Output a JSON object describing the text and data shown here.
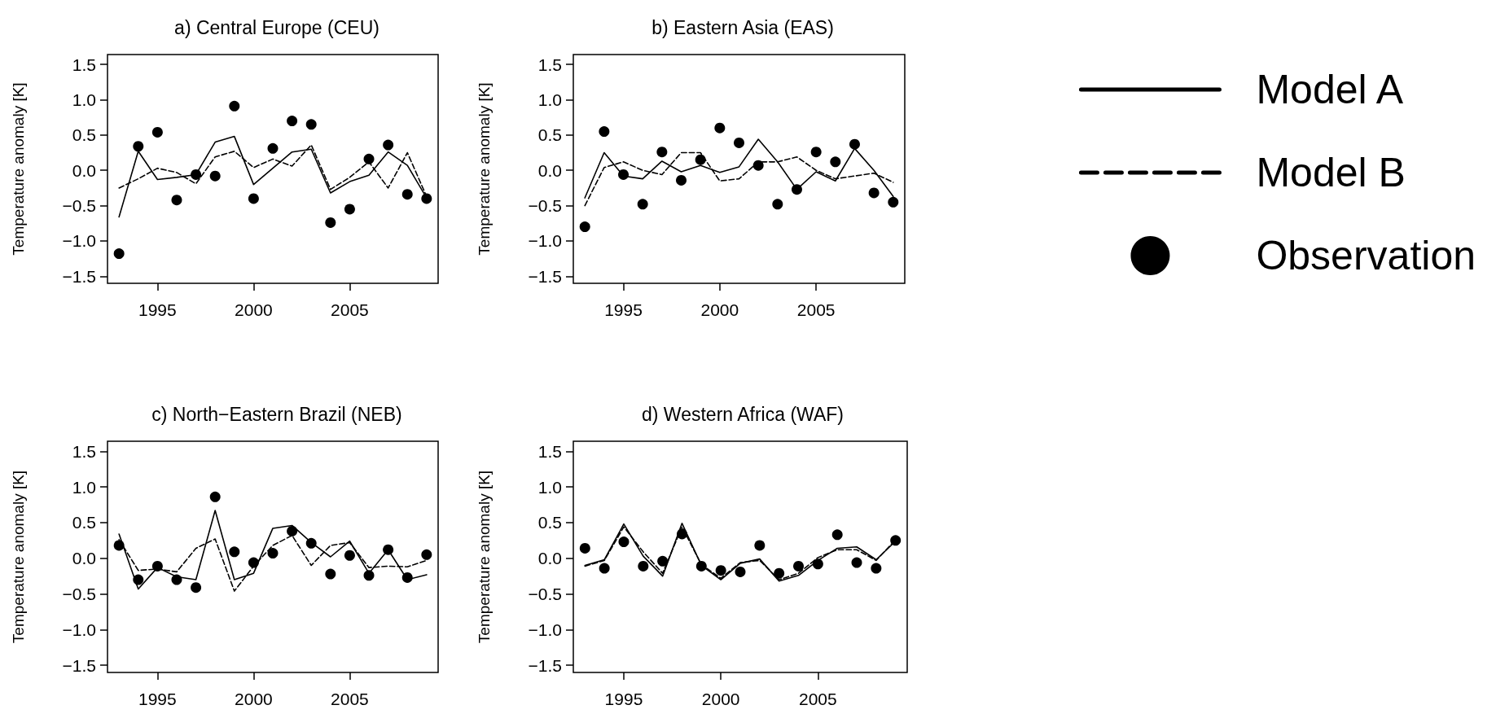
{
  "chart_data": [
    {
      "type": "line",
      "title": "a) Central Europe (CEU)",
      "ylabel": "Temperature anomaly [K]",
      "xlim": [
        1992.4,
        2009.6
      ],
      "xticks": [
        1995,
        2000,
        2005
      ],
      "ylim": [
        -1.6,
        1.64
      ],
      "yticks": [
        {
          "value": -1.5,
          "label": "−1.5"
        },
        {
          "value": -1,
          "label": "−1.0"
        },
        {
          "value": -0.5,
          "label": "−0.5"
        },
        {
          "value": 0,
          "label": "0.0"
        },
        {
          "value": 0.5,
          "label": "0.5"
        },
        {
          "value": 1,
          "label": "1.0"
        },
        {
          "value": 1.5,
          "label": "1.5"
        }
      ],
      "grid": false,
      "x": [
        1993,
        1994,
        1995,
        1996,
        1997,
        1998,
        1999,
        2000,
        2001,
        2002,
        2003,
        2004,
        2005,
        2006,
        2007,
        2008,
        2009
      ],
      "series": [
        {
          "type": "line",
          "color": "#000000",
          "line_style": "solid",
          "marker": "none",
          "values": [
            -0.66,
            0.27,
            -0.13,
            -0.1,
            -0.06,
            0.4,
            0.48,
            -0.2,
            0.03,
            0.26,
            0.3,
            -0.32,
            -0.16,
            -0.07,
            0.26,
            0.07,
            -0.39
          ]
        },
        {
          "type": "line",
          "color": "#000000",
          "line_style": "dashed",
          "marker": "none",
          "values": [
            -0.25,
            -0.12,
            0.03,
            -0.03,
            -0.19,
            0.19,
            0.27,
            0.04,
            0.16,
            0.06,
            0.36,
            -0.27,
            -0.1,
            0.12,
            -0.25,
            0.25,
            -0.37
          ]
        },
        {
          "type": "scatter",
          "color": "#000000",
          "marker": "circle",
          "values": [
            -1.18,
            0.34,
            0.54,
            -0.42,
            -0.06,
            -0.08,
            0.91,
            -0.4,
            0.31,
            0.7,
            0.65,
            -0.74,
            -0.55,
            0.16,
            0.36,
            -0.34,
            -0.4
          ]
        }
      ]
    },
    {
      "type": "line",
      "title": "b) Eastern Asia (EAS)",
      "ylabel": "Temperature anomaly [K]",
      "xlim": [
        1992.4,
        2009.6
      ],
      "xticks": [
        1995,
        2000,
        2005
      ],
      "ylim": [
        -1.6,
        1.64
      ],
      "yticks": [
        {
          "value": -1.5,
          "label": "−1.5"
        },
        {
          "value": -1,
          "label": "−1.0"
        },
        {
          "value": -0.5,
          "label": "−0.5"
        },
        {
          "value": 0,
          "label": "0.0"
        },
        {
          "value": 0.5,
          "label": "0.5"
        },
        {
          "value": 1,
          "label": "1.0"
        },
        {
          "value": 1.5,
          "label": "1.5"
        }
      ],
      "grid": false,
      "legend": "right",
      "x": [
        1993,
        1994,
        1995,
        1996,
        1997,
        1998,
        1999,
        2000,
        2001,
        2002,
        2003,
        2004,
        2005,
        2006,
        2007,
        2008,
        2009
      ],
      "series": [
        {
          "type": "line",
          "name": "Model A",
          "color": "#000000",
          "line_style": "solid",
          "marker": "none",
          "values": [
            -0.39,
            0.25,
            -0.08,
            -0.12,
            0.13,
            -0.02,
            0.07,
            -0.03,
            0.05,
            0.44,
            0.12,
            -0.27,
            -0.02,
            -0.15,
            0.31,
            0,
            -0.37
          ]
        },
        {
          "type": "line",
          "name": "Model B",
          "color": "#000000",
          "line_style": "dashed",
          "marker": "none",
          "values": [
            -0.5,
            0.04,
            0.12,
            0,
            -0.06,
            0.25,
            0.25,
            -0.15,
            -0.12,
            0.12,
            0.12,
            0.19,
            0,
            -0.12,
            -0.08,
            -0.04,
            -0.17
          ]
        },
        {
          "type": "scatter",
          "name": "Observation",
          "color": "#000000",
          "marker": "circle",
          "values": [
            -0.8,
            0.55,
            -0.06,
            -0.48,
            0.26,
            -0.14,
            0.15,
            0.6,
            0.39,
            0.07,
            -0.48,
            -0.27,
            0.26,
            0.12,
            0.37,
            -0.32,
            -0.45
          ]
        }
      ]
    },
    {
      "type": "line",
      "title": "c) North−Eastern Brazil (NEB)",
      "ylabel": "Temperature anomaly [K]",
      "xlim": [
        1992.4,
        2009.6
      ],
      "xticks": [
        1995,
        2000,
        2005
      ],
      "ylim": [
        -1.6,
        1.64
      ],
      "yticks": [
        {
          "value": -1.5,
          "label": "−1.5"
        },
        {
          "value": -1,
          "label": "−1.0"
        },
        {
          "value": -0.5,
          "label": "−0.5"
        },
        {
          "value": 0,
          "label": "0.0"
        },
        {
          "value": 0.5,
          "label": "0.5"
        },
        {
          "value": 1,
          "label": "1.0"
        },
        {
          "value": 1.5,
          "label": "1.5"
        }
      ],
      "grid": false,
      "x": [
        1993,
        1994,
        1995,
        1996,
        1997,
        1998,
        1999,
        2000,
        2001,
        2002,
        2003,
        2004,
        2005,
        2006,
        2007,
        2008,
        2009
      ],
      "series": [
        {
          "type": "line",
          "color": "#000000",
          "line_style": "solid",
          "marker": "none",
          "values": [
            0.34,
            -0.43,
            -0.13,
            -0.26,
            -0.3,
            0.67,
            -0.3,
            -0.21,
            0.42,
            0.46,
            0.22,
            0.02,
            0.24,
            -0.21,
            0.12,
            -0.3,
            -0.23
          ]
        },
        {
          "type": "line",
          "color": "#000000",
          "line_style": "dashed",
          "marker": "none",
          "values": [
            0.26,
            -0.17,
            -0.15,
            -0.19,
            0.14,
            0.27,
            -0.46,
            -0.11,
            0.18,
            0.32,
            -0.1,
            0.18,
            0.22,
            -0.13,
            -0.11,
            -0.12,
            -0.03
          ]
        },
        {
          "type": "scatter",
          "color": "#000000",
          "marker": "circle",
          "values": [
            0.18,
            -0.3,
            -0.11,
            -0.3,
            -0.41,
            0.86,
            0.09,
            -0.06,
            0.07,
            0.38,
            0.21,
            -0.22,
            0.04,
            -0.24,
            0.12,
            -0.27,
            0.05
          ]
        }
      ]
    },
    {
      "type": "line",
      "title": "d) Western Africa (WAF)",
      "ylabel": "Temperature anomaly [K]",
      "xlim": [
        1992.4,
        2009.6
      ],
      "xticks": [
        1995,
        2000,
        2005
      ],
      "ylim": [
        -1.6,
        1.64
      ],
      "yticks": [
        {
          "value": -1.5,
          "label": "−1.5"
        },
        {
          "value": -1,
          "label": "−1.0"
        },
        {
          "value": -0.5,
          "label": "−0.5"
        },
        {
          "value": 0,
          "label": "0.0"
        },
        {
          "value": 0.5,
          "label": "0.5"
        },
        {
          "value": 1,
          "label": "1.0"
        },
        {
          "value": 1.5,
          "label": "1.5"
        }
      ],
      "grid": false,
      "x": [
        1993,
        1994,
        1995,
        1996,
        1997,
        1998,
        1999,
        2000,
        2001,
        2002,
        2003,
        2004,
        2005,
        2006,
        2007,
        2008,
        2009
      ],
      "series": [
        {
          "type": "line",
          "color": "#000000",
          "line_style": "solid",
          "marker": "none",
          "values": [
            -0.1,
            -0.02,
            0.48,
            0.03,
            -0.25,
            0.49,
            -0.1,
            -0.3,
            -0.07,
            -0.01,
            -0.32,
            -0.24,
            -0.03,
            0.14,
            0.16,
            -0.02,
            0.24
          ]
        },
        {
          "type": "line",
          "color": "#000000",
          "line_style": "dashed",
          "marker": "none",
          "values": [
            -0.11,
            -0.03,
            0.44,
            0.09,
            -0.21,
            0.44,
            -0.09,
            -0.28,
            -0.06,
            -0.03,
            -0.3,
            -0.21,
            0.01,
            0.12,
            0.12,
            -0.03,
            0.26
          ]
        },
        {
          "type": "scatter",
          "color": "#000000",
          "marker": "circle",
          "values": [
            0.14,
            -0.14,
            0.23,
            -0.11,
            -0.04,
            0.34,
            -0.11,
            -0.17,
            -0.19,
            0.18,
            -0.21,
            -0.11,
            -0.08,
            0.33,
            -0.06,
            -0.14,
            0.25
          ]
        }
      ]
    }
  ]
}
